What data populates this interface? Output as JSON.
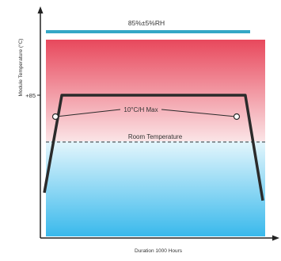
{
  "chart_data": {
    "type": "line",
    "title": "",
    "xlabel": "Duration 1000 Hours",
    "ylabel": "Module Temperature (°C)",
    "y_tick_labels": [
      "+85"
    ],
    "series": [
      {
        "name": "",
        "x": [
          0,
          0.08,
          0.92,
          1.0
        ],
        "y": [
          -40,
          85,
          85,
          -50
        ]
      }
    ],
    "annotations": {
      "humidity_label": "85%±5%RH",
      "max_rate_label": "10°C/H Max",
      "room_temperature_label": "Room Temperature"
    },
    "colors": {
      "humidity_bar": "#35a8c6",
      "hot_zone_top": "#e8485c",
      "hot_zone_bottom": "#fbe4e6",
      "cold_zone_top": "#e4f6fc",
      "cold_zone_bottom": "#39b9ec",
      "profile_line": "#2b2b2b",
      "label_text": "#333333"
    }
  }
}
